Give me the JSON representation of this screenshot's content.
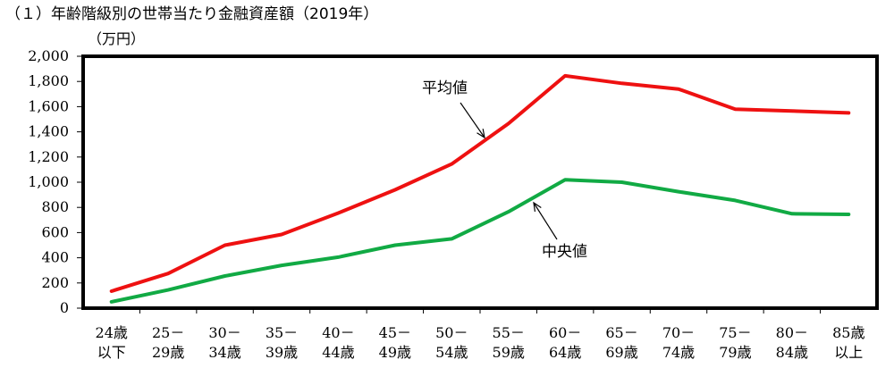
{
  "chart_data": {
    "type": "line",
    "title": "（１）年齢階級別の世帯当たり金融資産額（2019年）",
    "ylabel": "（万円）",
    "xlabel": "",
    "ylim": [
      0,
      2000
    ],
    "yticks": [
      0,
      200,
      400,
      600,
      800,
      1000,
      1200,
      1400,
      1600,
      1800,
      2000
    ],
    "ytick_labels": [
      "0",
      "200",
      "400",
      "600",
      "800",
      "1,000",
      "1,200",
      "1,400",
      "1,600",
      "1,800",
      "2,000"
    ],
    "grid": false,
    "categories": [
      [
        "24歳",
        "以下"
      ],
      [
        "25－",
        "29歳"
      ],
      [
        "30－",
        "34歳"
      ],
      [
        "35－",
        "39歳"
      ],
      [
        "40－",
        "44歳"
      ],
      [
        "45－",
        "49歳"
      ],
      [
        "50－",
        "54歳"
      ],
      [
        "55－",
        "59歳"
      ],
      [
        "60－",
        "64歳"
      ],
      [
        "65－",
        "69歳"
      ],
      [
        "70－",
        "74歳"
      ],
      [
        "75－",
        "79歳"
      ],
      [
        "80－",
        "84歳"
      ],
      [
        "85歳",
        "以上"
      ]
    ],
    "series": [
      {
        "name": "平均値",
        "color": "#ee1111",
        "values": [
          135,
          275,
          500,
          585,
          755,
          940,
          1145,
          1465,
          1845,
          1785,
          1740,
          1580,
          1565,
          1550
        ]
      },
      {
        "name": "中央値",
        "color": "#11aa44",
        "values": [
          50,
          145,
          255,
          340,
          405,
          500,
          550,
          765,
          1020,
          1000,
          925,
          855,
          750,
          745
        ]
      }
    ]
  }
}
